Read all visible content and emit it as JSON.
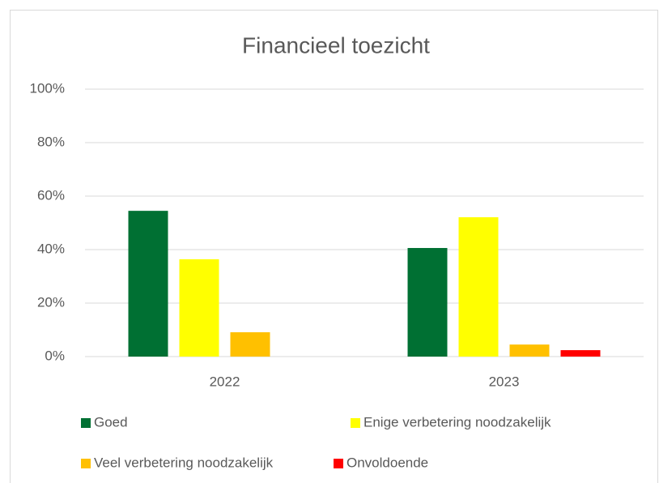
{
  "chart_data": {
    "type": "bar",
    "title": "Financieel toezicht",
    "categories": [
      "2022",
      "2023"
    ],
    "series": [
      {
        "name": "Goed",
        "color": "#007033",
        "values": [
          54.5,
          40.6
        ]
      },
      {
        "name": "Enige verbetering noodzakelijk",
        "color": "#ffff00",
        "values": [
          36.4,
          52.1
        ]
      },
      {
        "name": "Veel verbetering noodzakelijk",
        "color": "#ffc000",
        "values": [
          9.1,
          4.5
        ]
      },
      {
        "name": "Onvoldoende",
        "color": "#ff0000",
        "values": [
          0,
          2.4
        ]
      }
    ],
    "ylim": [
      0,
      100
    ],
    "yticks": [
      {
        "value": 0,
        "label": "0%"
      },
      {
        "value": 20,
        "label": "20%"
      },
      {
        "value": 40,
        "label": "40%"
      },
      {
        "value": 60,
        "label": "60%"
      },
      {
        "value": 80,
        "label": "80%"
      },
      {
        "value": 100,
        "label": "100%"
      }
    ],
    "grid": true,
    "legend": "bottom"
  }
}
